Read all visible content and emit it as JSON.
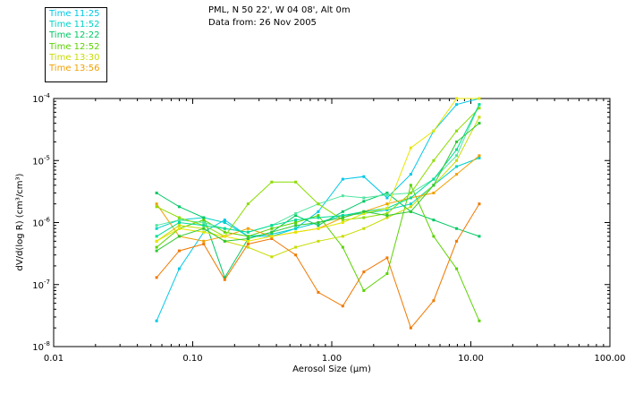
{
  "header": {
    "line1": "PML, N 50 22', W 04 08', Alt 0m",
    "line2": "Data from: 26 Nov 2005"
  },
  "chart_data": {
    "type": "line",
    "title": "",
    "xlabel": "Aerosol Size (µm)",
    "ylabel": "dV/d(log R) (cm³/cm³)",
    "xscale": "log",
    "yscale": "log",
    "xlim": [
      0.01,
      100
    ],
    "ylim": [
      1e-08,
      0.0001
    ],
    "xtick_labels": [
      "0.01",
      "0.10",
      "1.00",
      "10.00",
      "100.00"
    ],
    "ytick_labels": [
      {
        "base": "10",
        "exp": "-8"
      },
      {
        "base": "10",
        "exp": "-7"
      },
      {
        "base": "10",
        "exp": "-6"
      },
      {
        "base": "10",
        "exp": "-5"
      },
      {
        "base": "10",
        "exp": "-4"
      }
    ],
    "legend_position": "top-left, outside plot",
    "x": [
      0.055,
      0.08,
      0.12,
      0.17,
      0.25,
      0.37,
      0.55,
      0.8,
      1.2,
      1.7,
      2.5,
      3.7,
      5.4,
      7.9,
      11.5
    ],
    "series": [
      {
        "name": "Time 11:25",
        "color": "#00c8e6",
        "values": [
          2.6e-08,
          1.8e-07,
          7e-07,
          1.1e-06,
          6e-07,
          6e-07,
          8e-07,
          1.5e-06,
          5e-06,
          5.5e-06,
          2.5e-06,
          6e-06,
          3e-05,
          8e-05,
          0.0001
        ]
      },
      {
        "name": "Time 11:52",
        "color": "#00d2c8",
        "values": [
          8e-07,
          1.1e-06,
          1.2e-06,
          1e-06,
          6e-07,
          6.5e-07,
          8e-07,
          1e-06,
          1.3e-06,
          1.4e-06,
          1.6e-06,
          2e-06,
          4e-06,
          8e-06,
          1.1e-05
        ]
      },
      {
        "name": "Time 12:22",
        "color": "#00c864",
        "values": [
          3e-06,
          1.8e-06,
          1.2e-06,
          1.3e-07,
          5.5e-07,
          7e-07,
          1.3e-06,
          9e-07,
          1.5e-06,
          2.2e-06,
          3e-06,
          1.5e-06,
          1.1e-06,
          8e-07,
          6e-07
        ]
      },
      {
        "name": "Time 12:52",
        "color": "#5ad200",
        "values": [
          4e-07,
          8e-07,
          1.1e-06,
          7e-07,
          6e-07,
          8e-07,
          1e-06,
          1.3e-06,
          4e-07,
          8e-08,
          1.5e-07,
          4e-06,
          6e-07,
          1.8e-07,
          2.6e-08
        ]
      },
      {
        "name": "Time 13:30",
        "color": "#c8dc00",
        "values": [
          5e-07,
          9e-07,
          8e-07,
          5e-07,
          4e-07,
          2.8e-07,
          4e-07,
          5e-07,
          6e-07,
          8e-07,
          1.2e-06,
          1.8e-06,
          4e-06,
          1e-05,
          5e-05
        ]
      },
      {
        "name": "Time 13:56",
        "color": "#f0a000",
        "values": [
          2e-06,
          6e-07,
          5e-07,
          6e-07,
          8e-07,
          6e-07,
          7e-07,
          8e-07,
          1.2e-06,
          1.5e-06,
          2e-06,
          2.5e-06,
          3e-06,
          6e-06,
          1.2e-05
        ]
      },
      {
        "color": "#f07800",
        "values": [
          1.3e-07,
          3.5e-07,
          4.5e-07,
          1.2e-07,
          4.5e-07,
          5.5e-07,
          3e-07,
          7.5e-08,
          4.5e-08,
          1.6e-07,
          2.7e-07,
          2e-08,
          5.5e-08,
          5e-07,
          2e-06
        ]
      },
      {
        "color": "#50e6a0",
        "values": [
          9e-07,
          1.1e-06,
          1e-06,
          8e-07,
          7e-07,
          9e-07,
          1.4e-06,
          2e-06,
          2.7e-06,
          2.5e-06,
          2.8e-06,
          3e-06,
          5e-06,
          1.2e-05,
          8e-05
        ]
      },
      {
        "color": "#8cdc00",
        "values": [
          1.8e-06,
          1.2e-06,
          9e-07,
          6e-07,
          2e-06,
          4.5e-06,
          4.5e-06,
          2e-06,
          1.1e-06,
          1.2e-06,
          1.4e-06,
          3e-06,
          1e-05,
          3e-05,
          7e-05
        ]
      },
      {
        "color": "#00dc96",
        "values": [
          6e-07,
          1e-06,
          9e-07,
          8e-07,
          7e-07,
          9e-07,
          1.1e-06,
          1.2e-06,
          1.3e-06,
          1.5e-06,
          1.7e-06,
          2.5e-06,
          5e-06,
          1.5e-05,
          8e-05
        ]
      },
      {
        "color": "#e6e600",
        "values": [
          5e-07,
          8e-07,
          7e-07,
          6e-07,
          5e-07,
          6e-07,
          7e-07,
          8e-07,
          1e-06,
          1.4e-06,
          1.7e-06,
          1.6e-05,
          3e-05,
          0.0001,
          0.0001
        ]
      },
      {
        "color": "#30c830",
        "values": [
          3.5e-07,
          6e-07,
          8e-07,
          5e-07,
          5.5e-07,
          7e-07,
          9e-07,
          1e-06,
          1.2e-06,
          1.5e-06,
          1.3e-06,
          1.5e-06,
          4e-06,
          2e-05,
          4e-05
        ]
      }
    ]
  }
}
